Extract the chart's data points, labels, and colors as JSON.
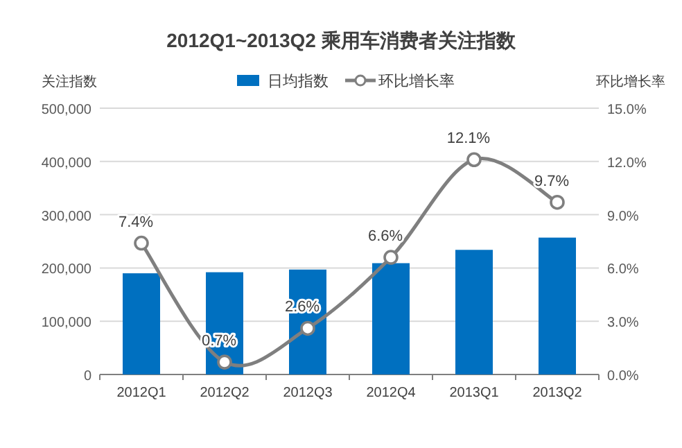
{
  "chart_data": {
    "type": "bar",
    "title": "2012Q1~2013Q2 乘用车消费者关注指数",
    "ylabel": "关注指数",
    "y2label": "环比增长率",
    "categories": [
      "2012Q1",
      "2012Q2",
      "2012Q3",
      "2012Q4",
      "2013Q1",
      "2013Q2"
    ],
    "series": [
      {
        "name": "日均指数",
        "color": "#0070c0",
        "values": [
          190000,
          192000,
          197000,
          209000,
          234000,
          257000
        ]
      },
      {
        "name": "环比增长率",
        "type": "line",
        "axis": "y2",
        "color": "#7f7f7f",
        "marker": "circle",
        "values": [
          7.4,
          0.7,
          2.6,
          6.6,
          12.1,
          9.7
        ],
        "value_labels": [
          "7.4%",
          "0.7%",
          "2.6%",
          "6.6%",
          "12.1%",
          "9.7%"
        ]
      }
    ],
    "ylim": [
      0,
      500000
    ],
    "yticks": [
      0,
      {
        "value": 100000,
        "label": "100,000"
      },
      {
        "value": 200000,
        "label": "200,000"
      },
      {
        "value": 300000,
        "label": "300,000"
      },
      {
        "value": 400000,
        "label": "400,000"
      },
      {
        "value": 500000,
        "label": "500,000"
      }
    ],
    "y2lim": [
      0,
      15
    ],
    "y2ticks": [
      {
        "value": 0,
        "label": "0.0%"
      },
      {
        "value": 3,
        "label": "3.0%"
      },
      {
        "value": 6,
        "label": "6.0%"
      },
      {
        "value": 9,
        "label": "9.0%"
      },
      {
        "value": 12,
        "label": "12.0%"
      },
      {
        "value": 15,
        "label": "15.0%"
      }
    ],
    "grid": "y",
    "legend": "top"
  }
}
